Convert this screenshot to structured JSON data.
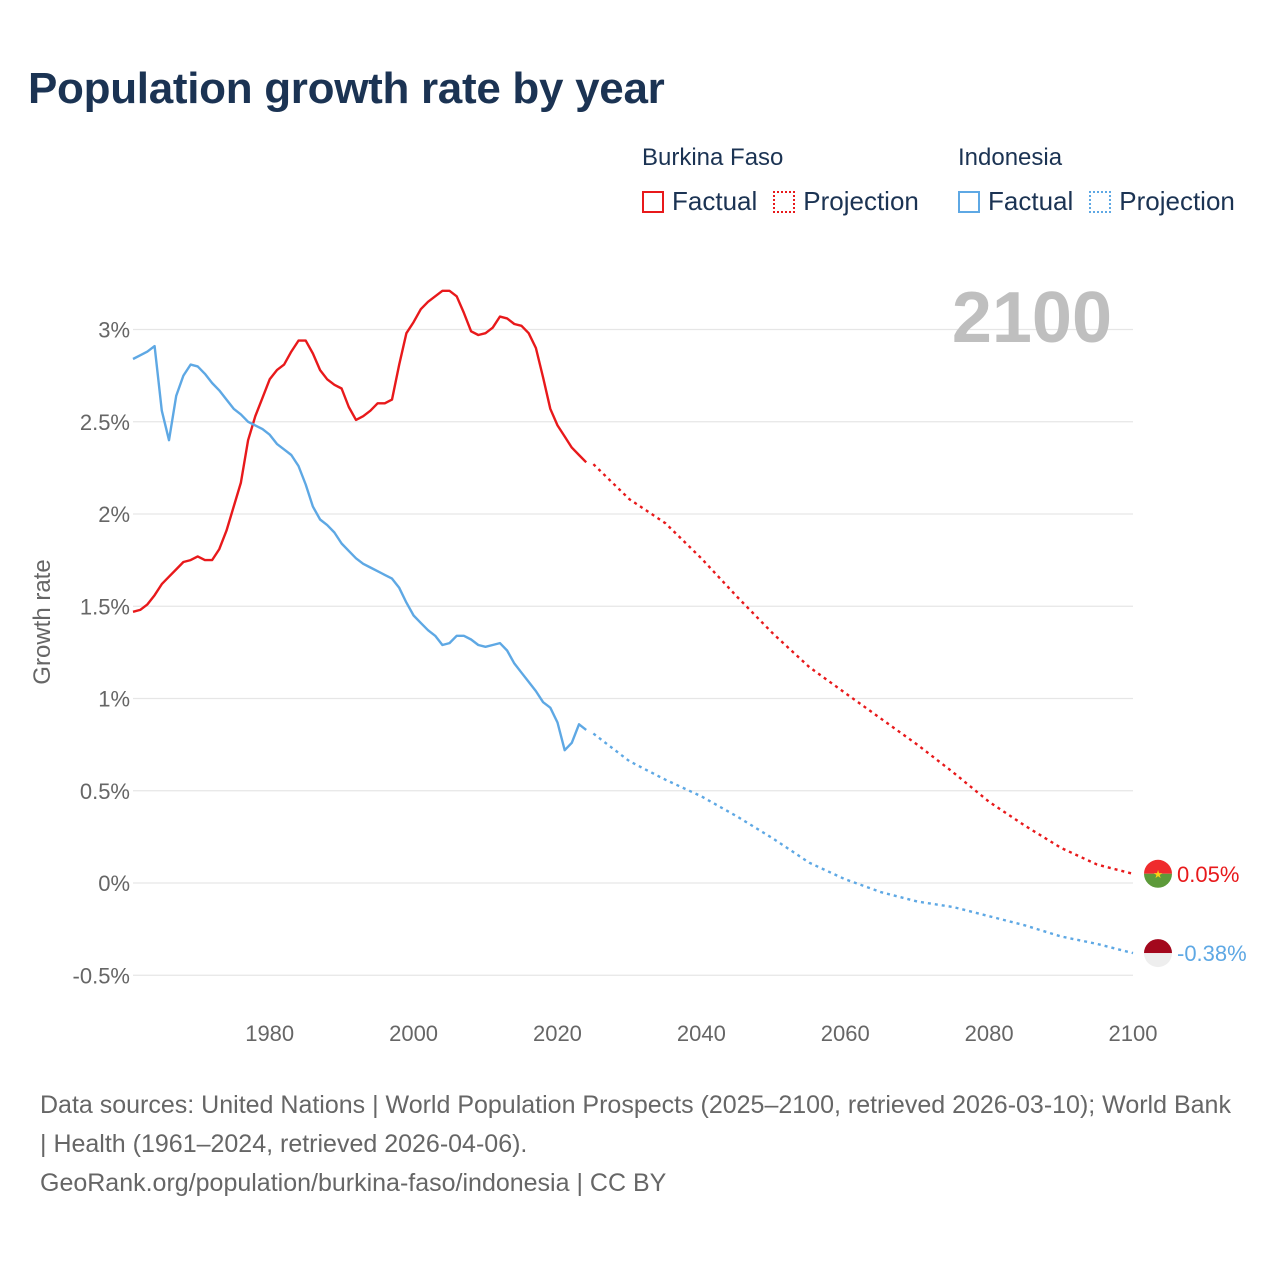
{
  "title": "Population growth rate by year",
  "colors": {
    "burkina": "#e8191b",
    "indonesia": "#5ea8e4",
    "title": "#1b3353",
    "grid": "#e6e6e6",
    "axis_text": "#666666",
    "year_watermark": "#bfbfbf"
  },
  "legend": {
    "groups": [
      {
        "name": "Burkina Faso",
        "factual": "Factual",
        "projection": "Projection"
      },
      {
        "name": "Indonesia",
        "factual": "Factual",
        "projection": "Projection"
      }
    ]
  },
  "year_label": "2100",
  "footer": {
    "sources": "Data sources: United Nations | World Population Prospects (2025–2100, retrieved 2026-03-10); World Bank | Health (1961–2024, retrieved 2026-04-06).",
    "link": "GeoRank.org/population/burkina-faso/indonesia | CC BY"
  },
  "chart_data": {
    "type": "line",
    "title": "Population growth rate by year",
    "xlabel": "",
    "ylabel": "Growth rate",
    "xlim": [
      1961,
      2100
    ],
    "ylim": [
      -0.5,
      3.3
    ],
    "xticks": [
      1980,
      2000,
      2020,
      2040,
      2060,
      2080,
      2100
    ],
    "xtick_labels": [
      "1980",
      "2000",
      "2020",
      "2040",
      "2060",
      "2080",
      "2100"
    ],
    "yticks": [
      -0.5,
      0,
      0.5,
      1,
      1.5,
      2,
      2.5,
      3
    ],
    "ytick_labels": [
      "-0.5%",
      "0%",
      "0.5%",
      "1%",
      "1.5%",
      "2%",
      "2.5%",
      "3%"
    ],
    "grid": true,
    "series": [
      {
        "name": "Burkina Faso",
        "color": "#e8191b",
        "end_label": "0.05%",
        "factual": {
          "x": [
            1961,
            1962,
            1963,
            1964,
            1965,
            1966,
            1967,
            1968,
            1969,
            1970,
            1971,
            1972,
            1973,
            1974,
            1975,
            1976,
            1977,
            1978,
            1979,
            1980,
            1981,
            1982,
            1983,
            1984,
            1985,
            1986,
            1987,
            1988,
            1989,
            1990,
            1991,
            1992,
            1993,
            1994,
            1995,
            1996,
            1997,
            1998,
            1999,
            2000,
            2001,
            2002,
            2003,
            2004,
            2005,
            2006,
            2007,
            2008,
            2009,
            2010,
            2011,
            2012,
            2013,
            2014,
            2015,
            2016,
            2017,
            2018,
            2019,
            2020,
            2021,
            2022,
            2023,
            2024
          ],
          "y": [
            1.47,
            1.48,
            1.51,
            1.56,
            1.62,
            1.66,
            1.7,
            1.74,
            1.75,
            1.77,
            1.75,
            1.75,
            1.81,
            1.91,
            2.04,
            2.17,
            2.4,
            2.53,
            2.63,
            2.73,
            2.78,
            2.81,
            2.88,
            2.94,
            2.94,
            2.87,
            2.78,
            2.73,
            2.7,
            2.68,
            2.58,
            2.51,
            2.53,
            2.56,
            2.6,
            2.6,
            2.62,
            2.81,
            2.98,
            3.04,
            3.11,
            3.15,
            3.18,
            3.21,
            3.21,
            3.18,
            3.09,
            2.99,
            2.97,
            2.98,
            3.01,
            3.07,
            3.06,
            3.03,
            3.02,
            2.98,
            2.9,
            2.74,
            2.57,
            2.48,
            2.42,
            2.36,
            2.32,
            2.28
          ]
        },
        "projection": {
          "x": [
            2025,
            2030,
            2035,
            2040,
            2045,
            2050,
            2055,
            2060,
            2065,
            2070,
            2075,
            2080,
            2085,
            2090,
            2095,
            2100
          ],
          "y": [
            2.27,
            2.08,
            1.95,
            1.76,
            1.55,
            1.35,
            1.17,
            1.03,
            0.89,
            0.75,
            0.6,
            0.44,
            0.31,
            0.19,
            0.1,
            0.05
          ]
        }
      },
      {
        "name": "Indonesia",
        "color": "#5ea8e4",
        "end_label": "-0.38%",
        "factual": {
          "x": [
            1961,
            1962,
            1963,
            1964,
            1965,
            1966,
            1967,
            1968,
            1969,
            1970,
            1971,
            1972,
            1973,
            1974,
            1975,
            1976,
            1977,
            1978,
            1979,
            1980,
            1981,
            1982,
            1983,
            1984,
            1985,
            1986,
            1987,
            1988,
            1989,
            1990,
            1991,
            1992,
            1993,
            1994,
            1995,
            1996,
            1997,
            1998,
            1999,
            2000,
            2001,
            2002,
            2003,
            2004,
            2005,
            2006,
            2007,
            2008,
            2009,
            2010,
            2011,
            2012,
            2013,
            2014,
            2015,
            2016,
            2017,
            2018,
            2019,
            2020,
            2021,
            2022,
            2023,
            2024
          ],
          "y": [
            2.84,
            2.86,
            2.88,
            2.91,
            2.56,
            2.4,
            2.64,
            2.75,
            2.81,
            2.8,
            2.76,
            2.71,
            2.67,
            2.62,
            2.57,
            2.54,
            2.5,
            2.48,
            2.46,
            2.43,
            2.38,
            2.35,
            2.32,
            2.26,
            2.16,
            2.04,
            1.97,
            1.94,
            1.9,
            1.84,
            1.8,
            1.76,
            1.73,
            1.71,
            1.69,
            1.67,
            1.65,
            1.6,
            1.52,
            1.45,
            1.41,
            1.37,
            1.34,
            1.29,
            1.3,
            1.34,
            1.34,
            1.32,
            1.29,
            1.28,
            1.29,
            1.3,
            1.26,
            1.19,
            1.14,
            1.09,
            1.04,
            0.98,
            0.95,
            0.87,
            0.72,
            0.76,
            0.86,
            0.83
          ]
        },
        "projection": {
          "x": [
            2025,
            2030,
            2035,
            2040,
            2045,
            2050,
            2055,
            2060,
            2065,
            2070,
            2075,
            2080,
            2085,
            2090,
            2095,
            2100
          ],
          "y": [
            0.81,
            0.66,
            0.56,
            0.47,
            0.36,
            0.24,
            0.11,
            0.02,
            -0.05,
            -0.1,
            -0.13,
            -0.18,
            -0.23,
            -0.29,
            -0.33,
            -0.38
          ]
        }
      }
    ]
  }
}
